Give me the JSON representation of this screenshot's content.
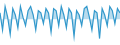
{
  "chart_data": {
    "type": "line",
    "x": [
      0,
      1,
      2,
      3,
      4,
      5,
      6,
      7,
      8,
      9,
      10,
      11,
      12,
      13,
      14,
      15,
      16,
      17,
      18,
      19,
      20,
      21,
      22,
      23,
      24,
      25,
      26,
      27,
      28,
      29,
      30,
      31,
      32,
      33,
      34,
      35,
      36,
      37,
      38,
      39,
      40,
      41,
      42,
      43,
      44,
      45,
      46,
      47
    ],
    "values": [
      0.3,
      -0.5,
      0.6,
      0.1,
      -0.7,
      0.5,
      0.2,
      -0.4,
      0.6,
      0.1,
      -0.3,
      0.4,
      0.6,
      0.2,
      -0.5,
      0.4,
      0.3,
      -0.2,
      0.5,
      0.3,
      -0.6,
      0.5,
      0.4,
      -0.3,
      0.6,
      0.2,
      -0.4,
      0.5,
      0.3,
      -0.8,
      0.4,
      0.2,
      -0.3,
      0.5,
      0.6,
      0.1,
      -0.5,
      0.4,
      0.3,
      -0.9,
      0.5,
      0.2,
      -0.3,
      0.6,
      0.4,
      -0.2,
      0.5,
      0.3
    ],
    "baseline": 0.0,
    "color": "#3399cc",
    "xlim": [
      0,
      47
    ],
    "ylim": [
      -1.2,
      0.9
    ],
    "tick_labels": false,
    "grid": false
  }
}
